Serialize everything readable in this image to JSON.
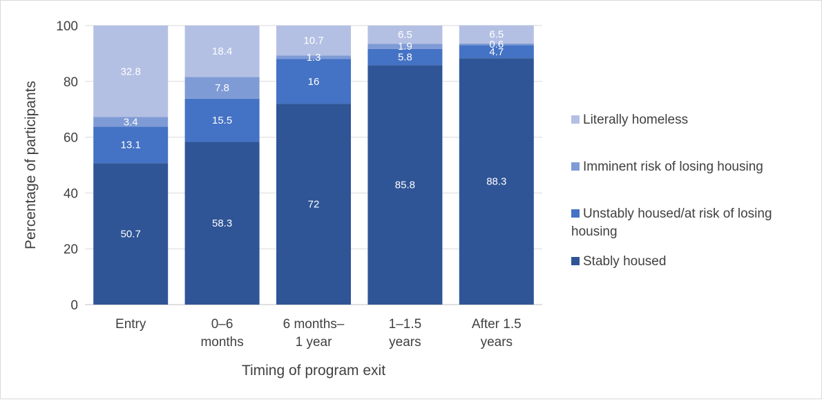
{
  "chart_data": {
    "type": "bar",
    "stacked": true,
    "xlabel": "Timing of program exit",
    "ylabel": "Percentage of participants",
    "ylim": [
      0,
      100
    ],
    "yticks": [
      0,
      20,
      40,
      60,
      80,
      100
    ],
    "grid": true,
    "legend_position": "right",
    "categories": [
      [
        "Entry"
      ],
      [
        "0–6",
        "months"
      ],
      [
        "6 months–",
        "1 year"
      ],
      [
        "1–1.5",
        "years"
      ],
      [
        "After 1.5",
        "years"
      ]
    ],
    "series": [
      {
        "name": "Stably housed",
        "color": "#2f5597",
        "values": [
          50.7,
          58.3,
          72,
          85.8,
          88.3
        ]
      },
      {
        "name": "Unstably housed/at risk of losing housing",
        "color": "#4472c4",
        "values": [
          13.1,
          15.5,
          16,
          5.8,
          4.7
        ]
      },
      {
        "name": "Imminent risk of losing housing",
        "color": "#7f9bd6",
        "values": [
          3.4,
          7.8,
          1.3,
          1.9,
          0.6
        ]
      },
      {
        "name": "Literally homeless",
        "color": "#b4c0e3",
        "values": [
          32.8,
          18.4,
          10.7,
          6.5,
          6.5
        ]
      }
    ],
    "legend_order": [
      3,
      2,
      1,
      0
    ],
    "legend_lines": [
      [
        "Literally homeless"
      ],
      [
        "Imminent risk of losing housing"
      ],
      [
        "Unstably housed/at risk of losing",
        "housing"
      ],
      [
        "Stably housed"
      ]
    ]
  }
}
